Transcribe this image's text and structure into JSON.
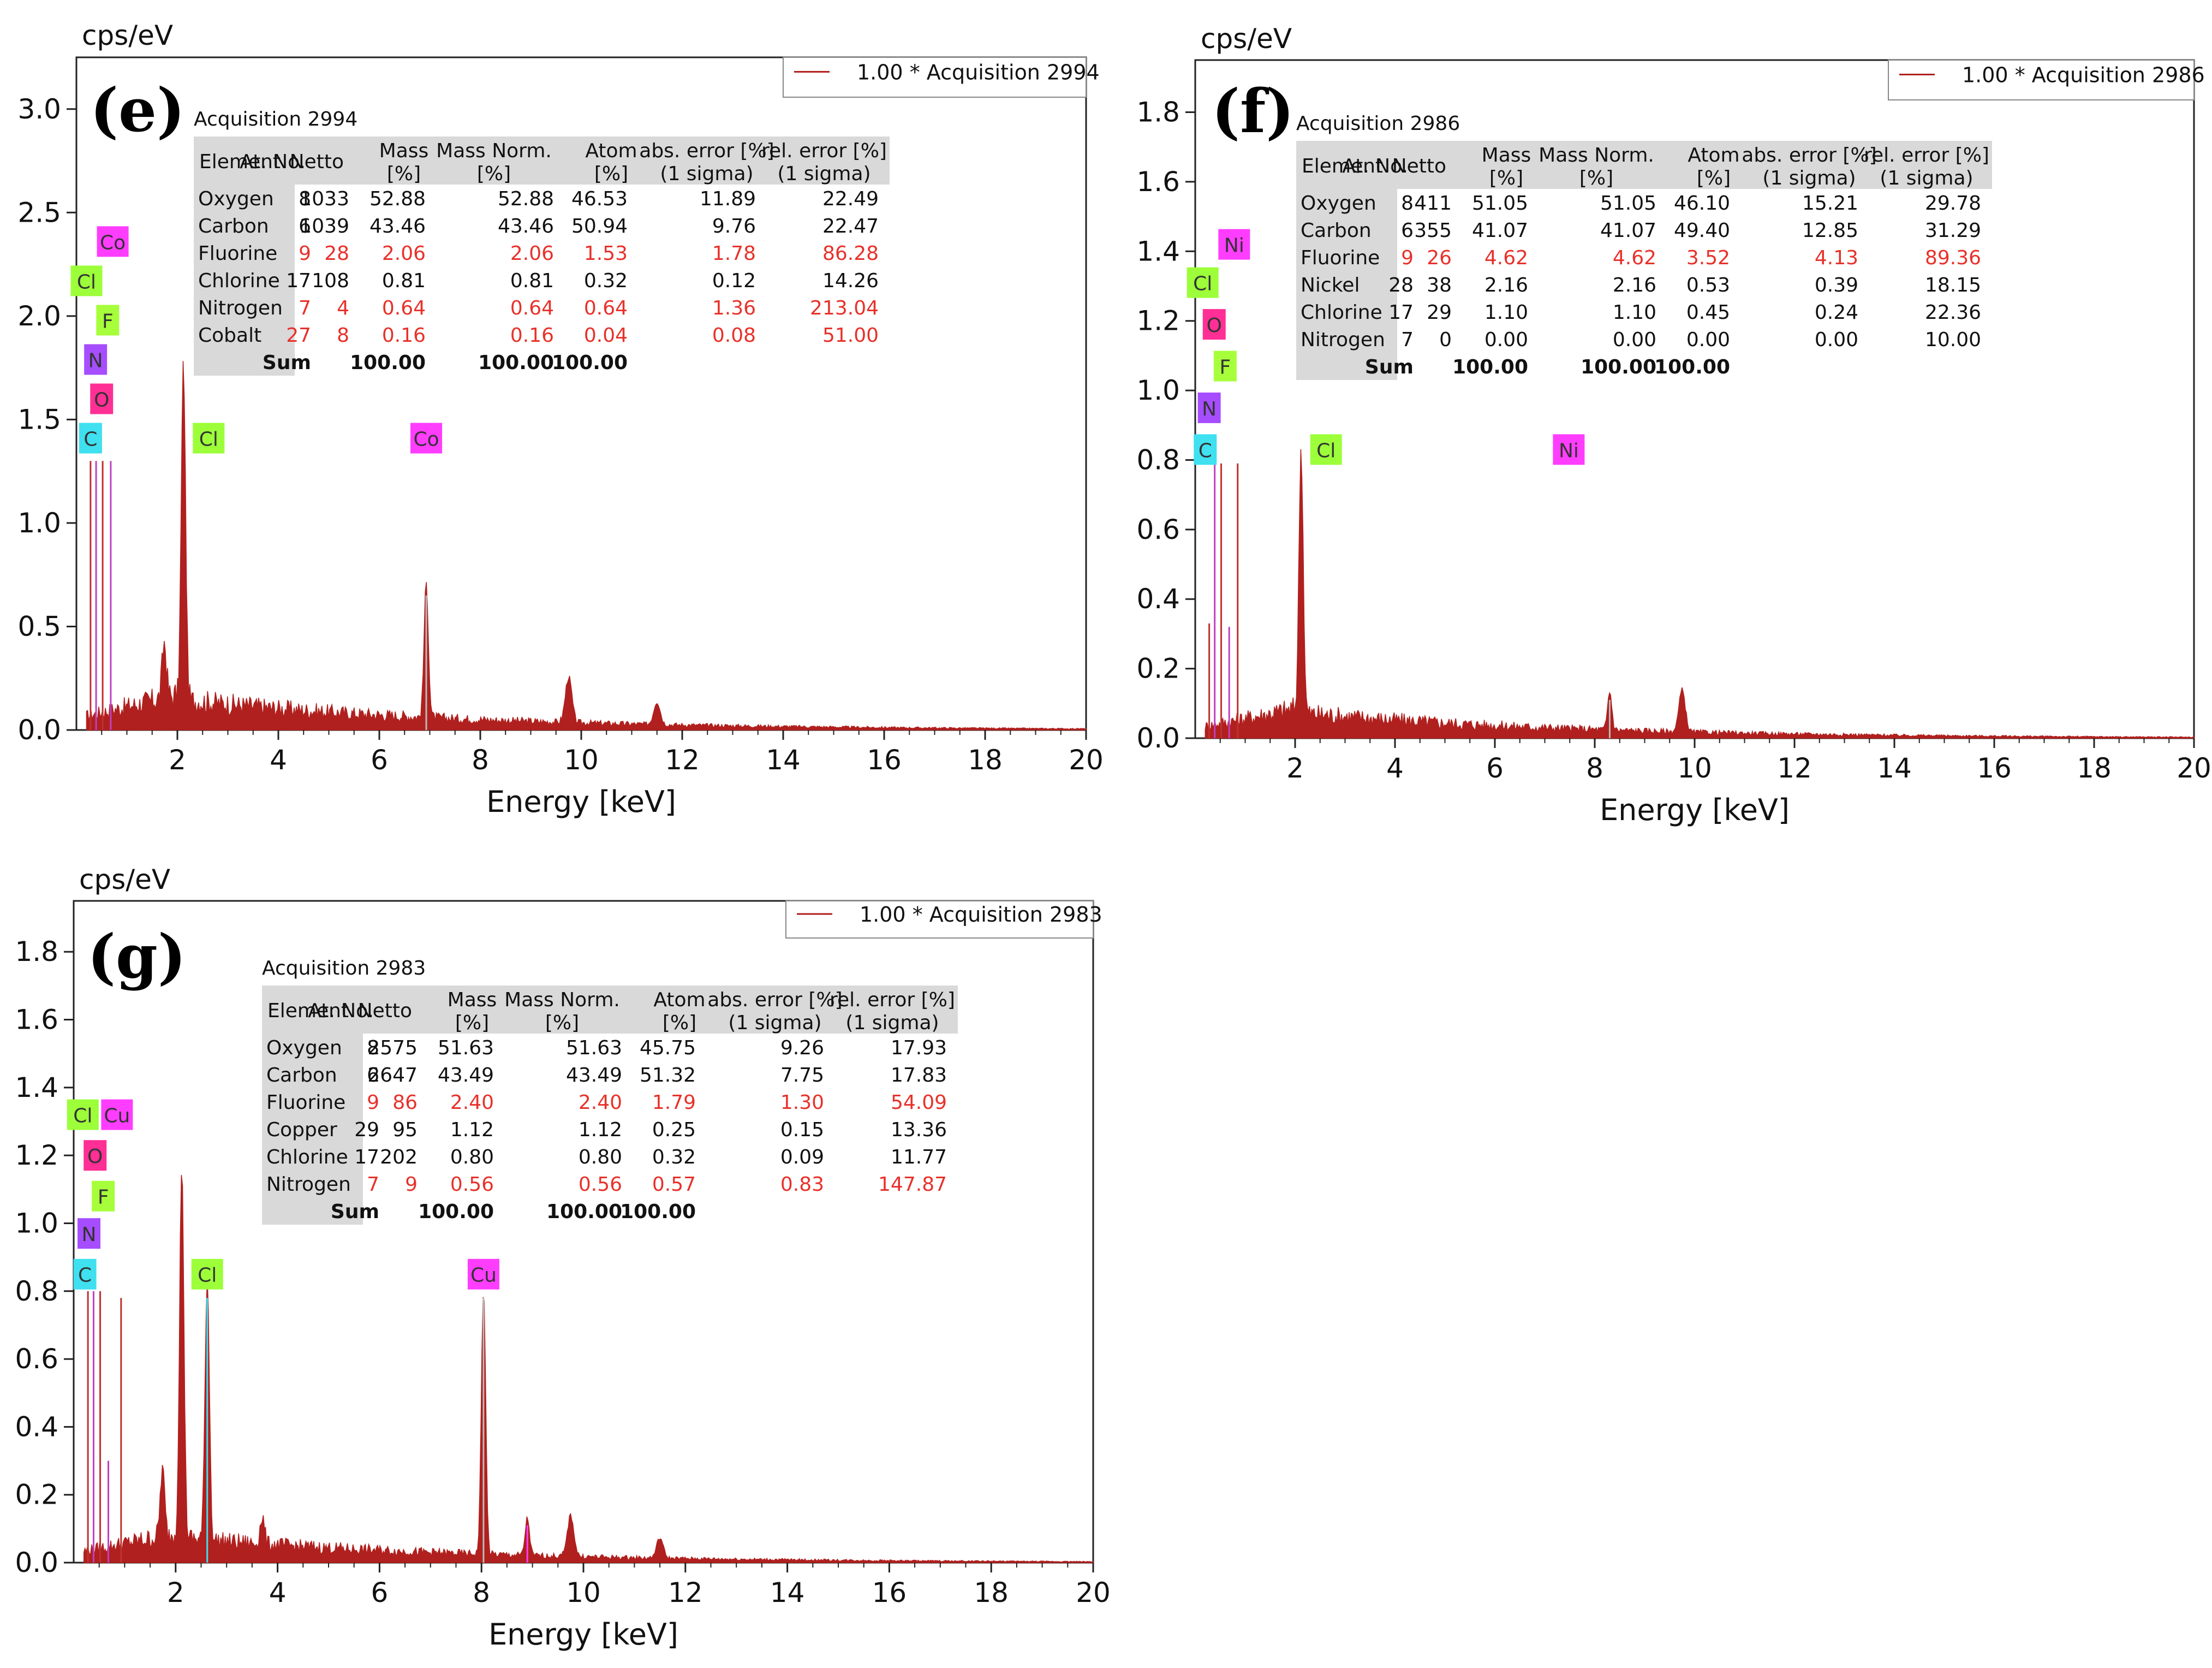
{
  "colors": {
    "spectrum": "#b0201e",
    "axis": "#222222",
    "table_header": "#d9d9d9",
    "warning_text": "#e8312a",
    "normal_text": "#111111",
    "tag": {
      "C": "#3fe0f0",
      "O": "#ff2f95",
      "F": "#a6ff3a",
      "N": "#a64dff",
      "Cl": "#9cff3a",
      "Co": "#ff3dff",
      "Ni": "#ff3dff",
      "Cu": "#ff3dff"
    }
  },
  "chart_data": [
    {
      "type": "line",
      "panel_label": "(e)",
      "y_unit_label": "cps/eV",
      "xlabel": "Energy [keV]",
      "xlim": [
        0,
        20
      ],
      "ylim": [
        0,
        3.25
      ],
      "xticks": [
        "2",
        "4",
        "6",
        "8",
        "10",
        "12",
        "14",
        "16",
        "18",
        "20"
      ],
      "yticks": [
        "0.0",
        "0.5",
        "1.0",
        "1.5",
        "2.0",
        "2.5",
        "3.0"
      ],
      "legend": "1.00 * Acquisition 2994",
      "acquisition_title": "Acquisition 2994",
      "peaks": [
        {
          "x": 0.28,
          "y": 1.3
        },
        {
          "x": 0.39,
          "y": 1.3
        },
        {
          "x": 0.52,
          "y": 1.3
        },
        {
          "x": 0.68,
          "y": 1.3
        },
        {
          "x": 2.12,
          "y": 1.61
        },
        {
          "x": 1.74,
          "y": 0.27
        },
        {
          "x": 9.75,
          "y": 0.22
        },
        {
          "x": 11.5,
          "y": 0.11
        },
        {
          "x": 6.93,
          "y": 0.65
        }
      ],
      "tags": [
        {
          "el": "Co",
          "x": 0.72,
          "y": 2.36
        },
        {
          "el": "Cl",
          "x": 0.2,
          "y": 2.17
        },
        {
          "el": "F",
          "x": 0.62,
          "y": 1.98
        },
        {
          "el": "N",
          "x": 0.38,
          "y": 1.79
        },
        {
          "el": "O",
          "x": 0.5,
          "y": 1.6
        },
        {
          "el": "C",
          "x": 0.28,
          "y": 1.41
        },
        {
          "el": "Cl",
          "x": 2.62,
          "y": 1.41
        },
        {
          "el": "Co",
          "x": 6.93,
          "y": 1.41
        }
      ],
      "table": {
        "headers": [
          [
            "Element",
            ""
          ],
          [
            "At. No.",
            ""
          ],
          [
            "Netto",
            ""
          ],
          [
            "Mass",
            "[%]"
          ],
          [
            "Mass Norm.",
            "[%]"
          ],
          [
            "Atom",
            "[%]"
          ],
          [
            "abs. error [%]",
            "(1 sigma)"
          ],
          [
            "rel. error [%]",
            "(1 sigma)"
          ]
        ],
        "rows": [
          {
            "cells": [
              "Oxygen",
              "8",
              "1033",
              "52.88",
              "52.88",
              "46.53",
              "11.89",
              "22.49"
            ],
            "warn": false
          },
          {
            "cells": [
              "Carbon",
              "6",
              "1039",
              "43.46",
              "43.46",
              "50.94",
              "9.76",
              "22.47"
            ],
            "warn": false
          },
          {
            "cells": [
              "Fluorine",
              "9",
              "28",
              "2.06",
              "2.06",
              "1.53",
              "1.78",
              "86.28"
            ],
            "warn": true
          },
          {
            "cells": [
              "Chlorine",
              "17",
              "108",
              "0.81",
              "0.81",
              "0.32",
              "0.12",
              "14.26"
            ],
            "warn": false
          },
          {
            "cells": [
              "Nitrogen",
              "7",
              "4",
              "0.64",
              "0.64",
              "0.64",
              "1.36",
              "213.04"
            ],
            "warn": true
          },
          {
            "cells": [
              "Cobalt",
              "27",
              "8",
              "0.16",
              "0.16",
              "0.04",
              "0.08",
              "51.00"
            ],
            "warn": true
          }
        ],
        "sum": [
          "Sum",
          "100.00",
          "100.00",
          "100.00"
        ]
      }
    },
    {
      "type": "line",
      "panel_label": "(f)",
      "y_unit_label": "cps/eV",
      "xlabel": "Energy [keV]",
      "xlim": [
        0,
        20
      ],
      "ylim": [
        0,
        1.95
      ],
      "xticks": [
        "2",
        "4",
        "6",
        "8",
        "10",
        "12",
        "14",
        "16",
        "18",
        "20"
      ],
      "yticks": [
        "0.0",
        "0.2",
        "0.4",
        "0.6",
        "0.8",
        "1.0",
        "1.2",
        "1.4",
        "1.6",
        "1.8"
      ],
      "legend": "1.00 * Acquisition 2986",
      "acquisition_title": "Acquisition 2986",
      "peaks": [
        {
          "x": 0.28,
          "y": 0.33
        },
        {
          "x": 0.39,
          "y": 0.79
        },
        {
          "x": 0.52,
          "y": 0.79
        },
        {
          "x": 0.68,
          "y": 0.32
        },
        {
          "x": 0.85,
          "y": 0.79
        },
        {
          "x": 2.12,
          "y": 0.76
        },
        {
          "x": 9.75,
          "y": 0.12
        },
        {
          "x": 11.55,
          "y": 0.05
        },
        {
          "x": 8.3,
          "y": 0.11
        }
      ],
      "tags": [
        {
          "el": "Ni",
          "x": 0.78,
          "y": 1.42
        },
        {
          "el": "Cl",
          "x": 0.15,
          "y": 1.31
        },
        {
          "el": "O",
          "x": 0.38,
          "y": 1.19
        },
        {
          "el": "F",
          "x": 0.6,
          "y": 1.07
        },
        {
          "el": "N",
          "x": 0.28,
          "y": 0.95
        },
        {
          "el": "C",
          "x": 0.2,
          "y": 0.83
        },
        {
          "el": "Cl",
          "x": 2.62,
          "y": 0.83
        },
        {
          "el": "Ni",
          "x": 7.48,
          "y": 0.83
        }
      ],
      "table": {
        "headers": [
          [
            "Element",
            ""
          ],
          [
            "At. No.",
            ""
          ],
          [
            "Netto",
            ""
          ],
          [
            "Mass",
            "[%]"
          ],
          [
            "Mass Norm.",
            "[%]"
          ],
          [
            "Atom",
            "[%]"
          ],
          [
            "abs. error [%]",
            "(1 sigma)"
          ],
          [
            "rel. error [%]",
            "(1 sigma)"
          ]
        ],
        "rows": [
          {
            "cells": [
              "Oxygen",
              "8",
              "411",
              "51.05",
              "51.05",
              "46.10",
              "15.21",
              "29.78"
            ],
            "warn": false
          },
          {
            "cells": [
              "Carbon",
              "6",
              "355",
              "41.07",
              "41.07",
              "49.40",
              "12.85",
              "31.29"
            ],
            "warn": false
          },
          {
            "cells": [
              "Fluorine",
              "9",
              "26",
              "4.62",
              "4.62",
              "3.52",
              "4.13",
              "89.36"
            ],
            "warn": true
          },
          {
            "cells": [
              "Nickel",
              "28",
              "38",
              "2.16",
              "2.16",
              "0.53",
              "0.39",
              "18.15"
            ],
            "warn": false
          },
          {
            "cells": [
              "Chlorine",
              "17",
              "29",
              "1.10",
              "1.10",
              "0.45",
              "0.24",
              "22.36"
            ],
            "warn": false
          },
          {
            "cells": [
              "Nitrogen",
              "7",
              "0",
              "0.00",
              "0.00",
              "0.00",
              "0.00",
              "10.00"
            ],
            "warn": false
          }
        ],
        "sum": [
          "Sum",
          "100.00",
          "100.00",
          "100.00"
        ]
      }
    },
    {
      "type": "line",
      "panel_label": "(g)",
      "y_unit_label": "cps/eV",
      "xlabel": "Energy [keV]",
      "xlim": [
        0,
        20
      ],
      "ylim": [
        0,
        1.95
      ],
      "xticks": [
        "2",
        "4",
        "6",
        "8",
        "10",
        "12",
        "14",
        "16",
        "18",
        "20"
      ],
      "yticks": [
        "0.0",
        "0.2",
        "0.4",
        "0.6",
        "0.8",
        "1.0",
        "1.2",
        "1.4",
        "1.6",
        "1.8"
      ],
      "legend": "1.00 * Acquisition 2983",
      "acquisition_title": "Acquisition 2983",
      "peaks": [
        {
          "x": 0.28,
          "y": 0.8
        },
        {
          "x": 0.39,
          "y": 0.8
        },
        {
          "x": 0.52,
          "y": 0.8
        },
        {
          "x": 0.68,
          "y": 0.3
        },
        {
          "x": 0.93,
          "y": 0.78
        },
        {
          "x": 2.12,
          "y": 1.09
        },
        {
          "x": 2.62,
          "y": 0.78
        },
        {
          "x": 8.04,
          "y": 0.78
        },
        {
          "x": 8.9,
          "y": 0.11
        },
        {
          "x": 9.75,
          "y": 0.12
        },
        {
          "x": 11.5,
          "y": 0.06
        },
        {
          "x": 1.74,
          "y": 0.2
        },
        {
          "x": 3.7,
          "y": 0.08
        }
      ],
      "tags": [
        {
          "el": "Cl",
          "x": 0.18,
          "y": 1.32
        },
        {
          "el": "Cu",
          "x": 0.85,
          "y": 1.32
        },
        {
          "el": "O",
          "x": 0.42,
          "y": 1.2
        },
        {
          "el": "F",
          "x": 0.58,
          "y": 1.08
        },
        {
          "el": "N",
          "x": 0.3,
          "y": 0.97
        },
        {
          "el": "C",
          "x": 0.22,
          "y": 0.85
        },
        {
          "el": "Cl",
          "x": 2.62,
          "y": 0.85
        },
        {
          "el": "Cu",
          "x": 8.04,
          "y": 0.85
        }
      ],
      "table": {
        "headers": [
          [
            "Element",
            ""
          ],
          [
            "At. No.",
            ""
          ],
          [
            "Netto",
            ""
          ],
          [
            "Mass",
            "[%]"
          ],
          [
            "Mass Norm.",
            "[%]"
          ],
          [
            "Atom",
            "[%]"
          ],
          [
            "abs. error [%]",
            "(1 sigma)"
          ],
          [
            "rel. error [%]",
            "(1 sigma)"
          ]
        ],
        "rows": [
          {
            "cells": [
              "Oxygen",
              "8",
              "2575",
              "51.63",
              "51.63",
              "45.75",
              "9.26",
              "17.93"
            ],
            "warn": false
          },
          {
            "cells": [
              "Carbon",
              "6",
              "2647",
              "43.49",
              "43.49",
              "51.32",
              "7.75",
              "17.83"
            ],
            "warn": false
          },
          {
            "cells": [
              "Fluorine",
              "9",
              "86",
              "2.40",
              "2.40",
              "1.79",
              "1.30",
              "54.09"
            ],
            "warn": true
          },
          {
            "cells": [
              "Copper",
              "29",
              "95",
              "1.12",
              "1.12",
              "0.25",
              "0.15",
              "13.36"
            ],
            "warn": false
          },
          {
            "cells": [
              "Chlorine",
              "17",
              "202",
              "0.80",
              "0.80",
              "0.32",
              "0.09",
              "11.77"
            ],
            "warn": false
          },
          {
            "cells": [
              "Nitrogen",
              "7",
              "9",
              "0.56",
              "0.56",
              "0.57",
              "0.83",
              "147.87"
            ],
            "warn": true
          }
        ],
        "sum": [
          "Sum",
          "100.00",
          "100.00",
          "100.00"
        ]
      }
    }
  ]
}
